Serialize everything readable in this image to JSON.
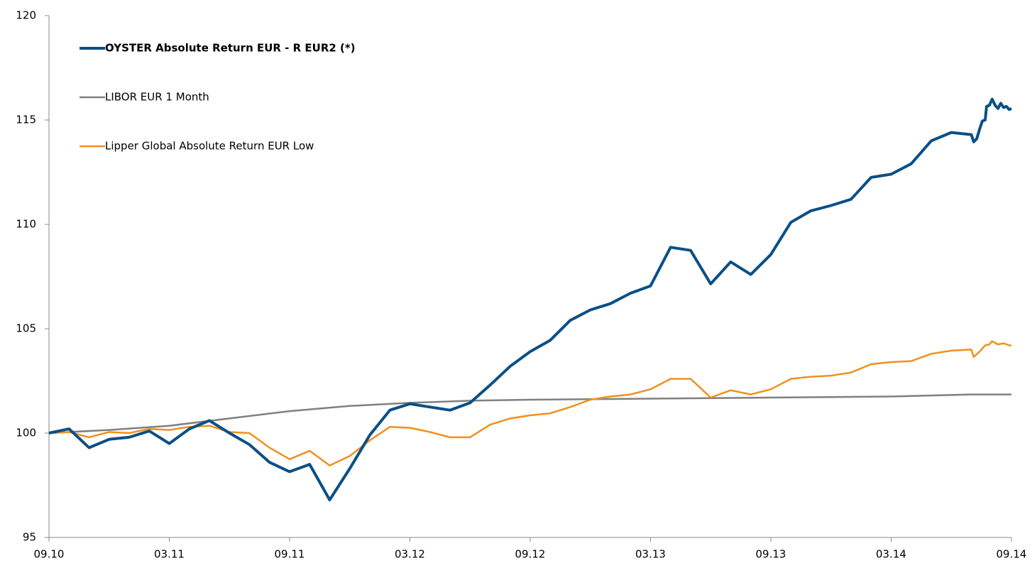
{
  "chart_data": {
    "type": "line",
    "xlim": [
      0,
      48
    ],
    "xticks": [
      {
        "value": 0,
        "label": "09.10"
      },
      {
        "value": 6,
        "label": "03.11"
      },
      {
        "value": 12,
        "label": "09.11"
      },
      {
        "value": 18,
        "label": "03.12"
      },
      {
        "value": 24,
        "label": "09.12"
      },
      {
        "value": 30,
        "label": "03.13"
      },
      {
        "value": 36,
        "label": "09.13"
      },
      {
        "value": 42,
        "label": "03.14"
      },
      {
        "value": 48,
        "label": "09.14"
      }
    ],
    "ylim": [
      95,
      120
    ],
    "yticks": [
      95,
      100,
      105,
      110,
      115,
      120
    ],
    "grid": false,
    "legend": "upper left",
    "series": [
      {
        "name": "OYSTER Absolute Return EUR - R EUR2 (*)",
        "color": "#0b4f86",
        "x": [
          0,
          1,
          2,
          3,
          4,
          5,
          6,
          7,
          8,
          9,
          10,
          11,
          12,
          13,
          14,
          15,
          16,
          17,
          18,
          19,
          20,
          21,
          22,
          23,
          24,
          25,
          26,
          27,
          28,
          29,
          30,
          31,
          32,
          33,
          34,
          35,
          36,
          37,
          38,
          39,
          40,
          41,
          42,
          43,
          44,
          45,
          46,
          46.12,
          46.27,
          46.41,
          46.55,
          46.69,
          46.76,
          46.9,
          47.04,
          47.19,
          47.33,
          47.47,
          47.61,
          47.75,
          47.89,
          48
        ],
        "values": [
          100,
          100.2,
          99.3,
          99.7,
          99.8,
          100.1,
          99.5,
          100.2,
          100.6,
          100,
          99.45,
          98.6,
          98.15,
          98.5,
          96.8,
          98.3,
          99.9,
          101.1,
          101.4,
          101.25,
          101.1,
          101.45,
          102.3,
          103.2,
          103.9,
          104.45,
          105.4,
          105.9,
          106.2,
          106.7,
          107.05,
          108.9,
          108.75,
          107.15,
          108.2,
          107.6,
          108.55,
          110.1,
          110.65,
          110.9,
          111.2,
          112.25,
          112.4,
          112.9,
          114,
          114.4,
          114.3,
          113.95,
          114.1,
          114.55,
          114.95,
          115,
          115.65,
          115.7,
          116,
          115.7,
          115.55,
          115.8,
          115.6,
          115.65,
          115.5,
          115.55
        ]
      },
      {
        "name": "LIBOR EUR 1 Month",
        "color": "#808080",
        "x": [
          0,
          3,
          6,
          9,
          12,
          15,
          18,
          21,
          24,
          30,
          36,
          42,
          46,
          48
        ],
        "values": [
          100,
          100.15,
          100.35,
          100.7,
          101.05,
          101.3,
          101.45,
          101.55,
          101.6,
          101.65,
          101.7,
          101.75,
          101.85,
          101.85
        ]
      },
      {
        "name": "Lipper Global Absolute Return EUR Low",
        "color": "#f0901e",
        "x": [
          0,
          1,
          2,
          3,
          4,
          5,
          6,
          7,
          8,
          9,
          10,
          11,
          12,
          13,
          14,
          15,
          16,
          17,
          18,
          19,
          20,
          21,
          22,
          23,
          24,
          25,
          26,
          27,
          28,
          29,
          30,
          31,
          32,
          33,
          34,
          35,
          36,
          37,
          38,
          39,
          40,
          41,
          42,
          43,
          44,
          45,
          46,
          46.12,
          46.41,
          46.69,
          46.9,
          47.04,
          47.33,
          47.61,
          47.89,
          48
        ],
        "values": [
          100,
          100.05,
          99.8,
          100.05,
          100,
          100.2,
          100.15,
          100.3,
          100.35,
          100.05,
          100,
          99.3,
          98.75,
          99.15,
          98.45,
          98.9,
          99.65,
          100.3,
          100.25,
          100.05,
          99.8,
          99.8,
          100.4,
          100.7,
          100.85,
          100.95,
          101.25,
          101.6,
          101.75,
          101.85,
          102.1,
          102.6,
          102.6,
          101.7,
          102.05,
          101.85,
          102.1,
          102.6,
          102.7,
          102.75,
          102.9,
          103.3,
          103.4,
          103.45,
          103.8,
          103.95,
          104,
          103.65,
          103.9,
          104.2,
          104.25,
          104.4,
          104.25,
          104.3,
          104.2,
          104.2
        ]
      }
    ]
  }
}
